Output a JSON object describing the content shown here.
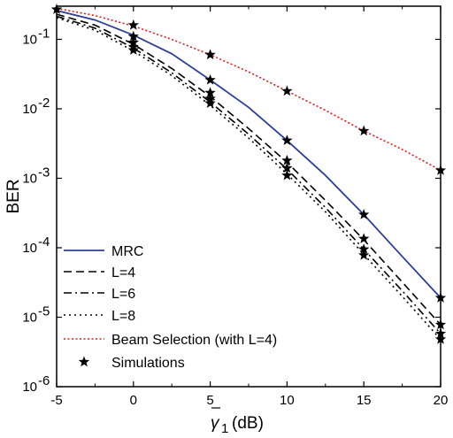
{
  "chart_data": {
    "type": "line",
    "xlabel_symbol": "γ",
    "xlabel_subscript": "1",
    "xlabel_unit": "(dB)",
    "ylabel": "BER",
    "xlim": [
      -5,
      20
    ],
    "ylim": [
      1e-06,
      0.3
    ],
    "yscale": "log",
    "grid": false,
    "legend_position": "bottom-left",
    "x_ticks": [
      {
        "value": -5,
        "label": "-5"
      },
      {
        "value": 0,
        "label": "0"
      },
      {
        "value": 5,
        "label": "5"
      },
      {
        "value": 10,
        "label": "10"
      },
      {
        "value": 15,
        "label": "15"
      },
      {
        "value": 20,
        "label": "20"
      }
    ],
    "y_ticks": [
      {
        "value": 1e-06,
        "base": "10",
        "exp": "-6"
      },
      {
        "value": 1e-05,
        "base": "10",
        "exp": "-5"
      },
      {
        "value": 0.0001,
        "base": "10",
        "exp": "-4"
      },
      {
        "value": 0.001,
        "base": "10",
        "exp": "-3"
      },
      {
        "value": 0.01,
        "base": "10",
        "exp": "-2"
      },
      {
        "value": 0.1,
        "base": "10",
        "exp": "-1"
      }
    ],
    "series": [
      {
        "name": "MRC",
        "color": "#2b3f9c",
        "dash": "solid",
        "x": [
          -5,
          -2.5,
          0,
          2.5,
          5,
          7.5,
          10,
          12.5,
          15,
          17.5,
          20
        ],
        "y": [
          0.26,
          0.19,
          0.115,
          0.062,
          0.026,
          0.0105,
          0.0035,
          0.0011,
          0.0003,
          7.5e-05,
          1.9e-05
        ]
      },
      {
        "name": "L=4",
        "color": "#000000",
        "dash": "dashed",
        "x": [
          -5,
          -2.5,
          0,
          2.5,
          5,
          7.5,
          10,
          12.5,
          15,
          17.5,
          20
        ],
        "y": [
          0.23,
          0.16,
          0.085,
          0.038,
          0.015,
          0.0052,
          0.0017,
          0.00048,
          0.00013,
          3.2e-05,
          7.8e-06
        ]
      },
      {
        "name": "L=6",
        "color": "#000000",
        "dash": "dashdot",
        "x": [
          -5,
          -2.5,
          0,
          2.5,
          5,
          7.5,
          10,
          12.5,
          15,
          17.5,
          20
        ],
        "y": [
          0.215,
          0.145,
          0.075,
          0.033,
          0.0125,
          0.0043,
          0.00135,
          0.00038,
          9.5e-05,
          2.4e-05,
          5.8e-06
        ]
      },
      {
        "name": "L=8",
        "color": "#000000",
        "dash": "dotted",
        "x": [
          -5,
          -2.5,
          0,
          2.5,
          5,
          7.5,
          10,
          12.5,
          15,
          17.5,
          20
        ],
        "y": [
          0.205,
          0.135,
          0.068,
          0.03,
          0.0112,
          0.0038,
          0.00115,
          0.00033,
          8e-05,
          2e-05,
          4.8e-06
        ]
      },
      {
        "name": "Beam Selection (with L=4)",
        "color": "#e8161a",
        "dash": "dotted-red",
        "x": [
          -5,
          -2.5,
          0,
          2.5,
          5,
          7.5,
          10,
          12.5,
          15,
          17.5,
          20
        ],
        "y": [
          0.28,
          0.22,
          0.155,
          0.1,
          0.06,
          0.034,
          0.018,
          0.0095,
          0.0048,
          0.0026,
          0.0013
        ]
      }
    ],
    "simulations": {
      "name": "Simulations",
      "points": [
        {
          "x": -5,
          "y": 0.27
        },
        {
          "x": 0,
          "y": 0.16
        },
        {
          "x": 0,
          "y": 0.11
        },
        {
          "x": 0,
          "y": 0.09
        },
        {
          "x": 0,
          "y": 0.078
        },
        {
          "x": 0,
          "y": 0.07
        },
        {
          "x": 5,
          "y": 0.06
        },
        {
          "x": 5,
          "y": 0.026
        },
        {
          "x": 5,
          "y": 0.017
        },
        {
          "x": 5,
          "y": 0.014
        },
        {
          "x": 5,
          "y": 0.012
        },
        {
          "x": 10,
          "y": 0.018
        },
        {
          "x": 10,
          "y": 0.0035
        },
        {
          "x": 10,
          "y": 0.0018
        },
        {
          "x": 10,
          "y": 0.0014
        },
        {
          "x": 10,
          "y": 0.0011
        },
        {
          "x": 15,
          "y": 0.0048
        },
        {
          "x": 15,
          "y": 0.0003
        },
        {
          "x": 15,
          "y": 0.000135
        },
        {
          "x": 15,
          "y": 9.5e-05
        },
        {
          "x": 15,
          "y": 7.8e-05
        },
        {
          "x": 20,
          "y": 0.0013
        },
        {
          "x": 20,
          "y": 1.9e-05
        },
        {
          "x": 20,
          "y": 7.8e-06
        },
        {
          "x": 20,
          "y": 5.8e-06
        },
        {
          "x": 20,
          "y": 4.8e-06
        }
      ]
    }
  }
}
